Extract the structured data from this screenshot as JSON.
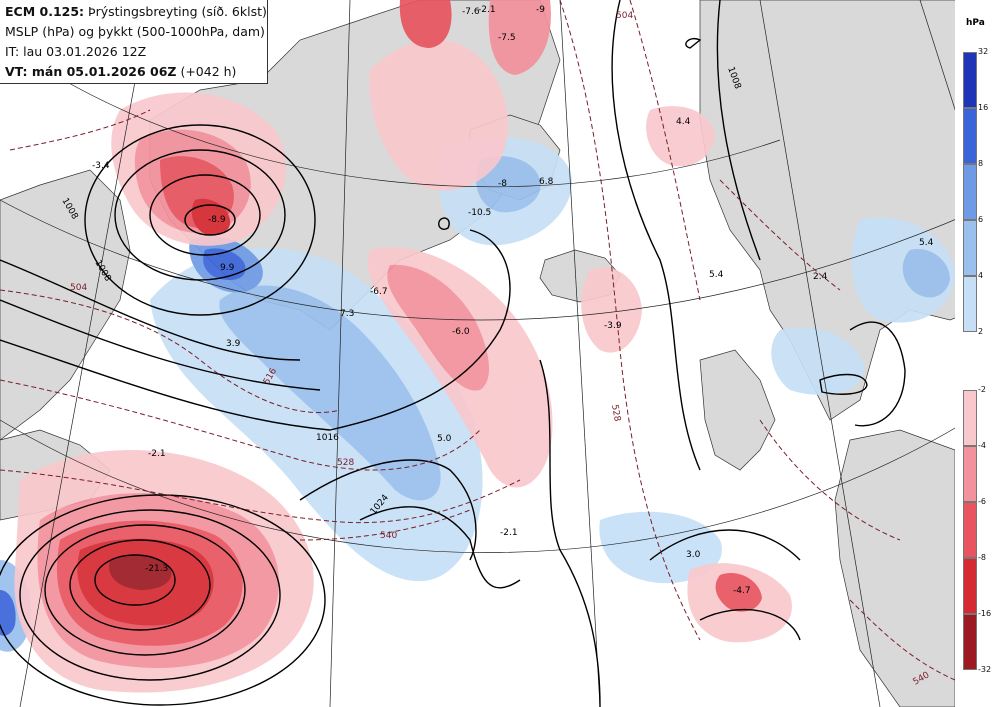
{
  "header": {
    "model": "ECM 0.125:",
    "field": "Þrýstingsbreyting (síð. 6klst)",
    "line2": "MSLP (hPa) og þykkt (500-1000hPa, dam)",
    "line3": "IT: lau 03.01.2026 12Z",
    "vt_label": "VT: mán 05.01.2026 06Z",
    "vt_suffix": "(+042 h)"
  },
  "legend": {
    "unit": "hPa",
    "rise": [
      {
        "label": "32",
        "color": "#1f35b8"
      },
      {
        "label": "16",
        "color": "#3b64d9"
      },
      {
        "label": "8",
        "color": "#6f9be6"
      },
      {
        "label": "6",
        "color": "#9ac0ee"
      },
      {
        "label": "4",
        "color": "#c6dff6"
      },
      {
        "label": "2",
        "color": ""
      }
    ],
    "fall": [
      {
        "label": "-2",
        "color": "#f9c8cd"
      },
      {
        "label": "-4",
        "color": "#f3919c"
      },
      {
        "label": "-6",
        "color": "#e8545f"
      },
      {
        "label": "-8",
        "color": "#d62a33"
      },
      {
        "label": "-16",
        "color": "#9c1a22"
      },
      {
        "label": "-32",
        "color": ""
      }
    ]
  },
  "map": {
    "colors": {
      "land": "#d9d9d9",
      "sea": "#ffffff",
      "isobar": "#000000",
      "thickness": "#7a1f2a",
      "grid": "#222222"
    },
    "isobar_labels": [
      "1008",
      "1008",
      "1008",
      "1016",
      "1024"
    ],
    "thickness_labels": [
      "504",
      "504",
      "516",
      "528",
      "528",
      "540",
      "540"
    ],
    "change_labels": [
      "-3.4",
      "-8.9",
      "9.9",
      "3.9",
      "7.3",
      "-6.7",
      "-6.0",
      "5.0",
      "-2.1",
      "-2.1",
      "-21.3",
      "-7.6",
      "-2.1",
      "-7.5",
      "-9",
      "4.4",
      "-3.9",
      "5.4",
      "2.4",
      "5.4",
      "3.0",
      "-4.7",
      "6.8",
      "-10.5",
      "-8"
    ]
  }
}
